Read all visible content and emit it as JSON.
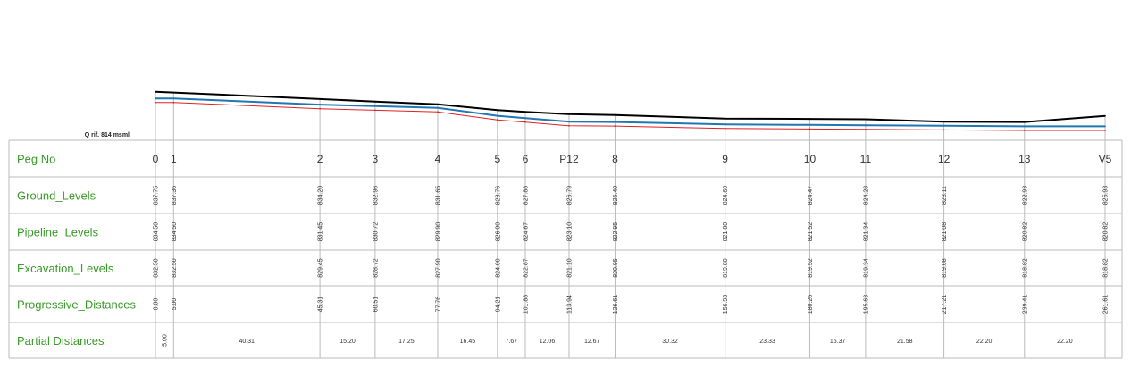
{
  "reference_label": "Q rif. 814 msml",
  "rows": [
    {
      "key": "peg",
      "label": "Peg No"
    },
    {
      "key": "ground",
      "label": "Ground_Levels"
    },
    {
      "key": "pipeline",
      "label": "Pipeline_Levels"
    },
    {
      "key": "excavation",
      "label": "Excavation_Levels"
    },
    {
      "key": "progressive",
      "label": "Progressive_Distances"
    },
    {
      "key": "partial",
      "label": "Partial Distances"
    }
  ],
  "colors": {
    "ground_line": "#000000",
    "pipeline_line": "#1f77b4",
    "excavation_line": "#e02020",
    "row_label": "#3a9a2a",
    "grid": "#bbbbbb"
  },
  "chart_data": {
    "type": "line",
    "reference_level": 814,
    "pegs": [
      "0",
      "1",
      "2",
      "3",
      "4",
      "5",
      "6",
      "P12",
      "8",
      "9",
      "10",
      "11",
      "12",
      "13",
      "V5"
    ],
    "progressive_distances": [
      0.0,
      5.0,
      45.31,
      60.51,
      77.76,
      94.21,
      101.88,
      113.94,
      126.61,
      156.93,
      180.26,
      195.63,
      217.21,
      239.41,
      261.61
    ],
    "progressive_labels": [
      "0.00",
      "5.00",
      "45.31",
      "60.51",
      "77.76",
      "94.21",
      "101.88",
      "113.94",
      "126.61",
      "156.93",
      "180.26",
      "195.63",
      "217.21",
      "239.41",
      "261.61"
    ],
    "series": [
      {
        "key": "ground",
        "values": [
          837.75,
          837.36,
          834.2,
          832.96,
          831.65,
          828.76,
          827.88,
          826.79,
          826.4,
          824.6,
          824.47,
          824.28,
          823.11,
          822.93,
          825.93
        ],
        "labels": [
          "837.75",
          "837.36",
          "834.20",
          "832.96",
          "831.65",
          "828.76",
          "827.88",
          "826.79",
          "826.40",
          "824.60",
          "824.47",
          "824.28",
          "823.11",
          "822.93",
          "825.93"
        ]
      },
      {
        "key": "pipeline",
        "values": [
          834.5,
          834.5,
          831.45,
          830.72,
          829.9,
          826.0,
          824.87,
          823.1,
          822.95,
          821.8,
          821.52,
          821.34,
          821.08,
          820.82,
          820.82
        ],
        "labels": [
          "834.50",
          "834.50",
          "831.45",
          "830.72",
          "829.90",
          "826.00",
          "824.87",
          "823.10",
          "822.95",
          "821.80",
          "821.52",
          "821.34",
          "821.08",
          "820.82",
          "820.82"
        ]
      },
      {
        "key": "excavation",
        "values": [
          832.5,
          832.5,
          829.45,
          828.72,
          827.9,
          824.0,
          822.87,
          821.1,
          820.95,
          819.8,
          819.52,
          819.34,
          819.08,
          818.82,
          818.82
        ],
        "labels": [
          "832.50",
          "832.50",
          "829.45",
          "828.72",
          "827.90",
          "824.00",
          "822.87",
          "821.10",
          "820.95",
          "819.80",
          "819.52",
          "819.34",
          "819.08",
          "818.82",
          "818.82"
        ]
      }
    ],
    "partial_distances": [
      "5.00",
      "40.31",
      "15.20",
      "17.25",
      "16.45",
      "7.67",
      "12.06",
      "12.67",
      "30.32",
      "23.33",
      "15.37",
      "21.58",
      "22.20",
      "22.20"
    ],
    "grid": true
  }
}
